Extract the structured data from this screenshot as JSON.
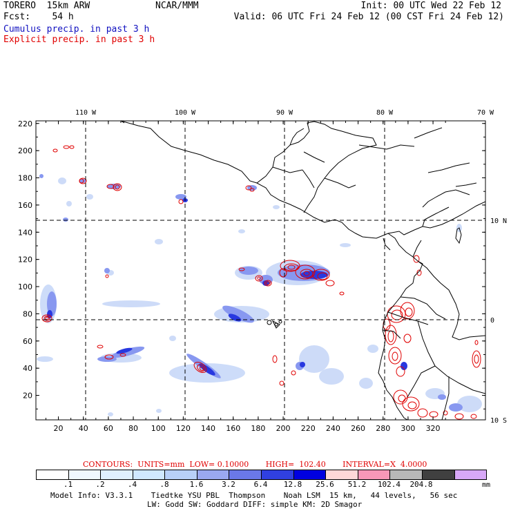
{
  "header": {
    "model": "TORERO  15km ARW",
    "org": "NCAR/MMM",
    "init": "Init: 00 UTC Wed 22 Feb 12",
    "fcst": "Fcst:    54 h",
    "valid": "Valid: 06 UTC Fri 24 Feb 12 (00 CST Fri 24 Feb 12)"
  },
  "legend": {
    "cumulus": "Cumulus precip. in past 3 h",
    "explicit": "Explicit precip. in past 3 h",
    "cumulus_color": "#1010c0",
    "explicit_color": "#e00000"
  },
  "map": {
    "top_lon_labels": [
      "110 W",
      "100 W",
      "90 W",
      "80 W",
      "70 W"
    ],
    "right_lat_labels": [
      "10 N",
      "0",
      "10 S"
    ],
    "y_ticks": [
      "220",
      "200",
      "180",
      "160",
      "140",
      "120",
      "100",
      "80",
      "60",
      "40",
      "20"
    ],
    "x_ticks": [
      "20",
      "40",
      "60",
      "80",
      "100",
      "120",
      "140",
      "160",
      "180",
      "200",
      "220",
      "240",
      "260",
      "280",
      "300",
      "320"
    ],
    "gridline_style": "dashed"
  },
  "contours_info": "CONTOURS:  UNITS=mm  LOW= 0.10000       HIGH=  102.40       INTERVAL=X  4.0000",
  "color_scale": {
    "colors": [
      "#ffffff",
      "#f0f8ff",
      "#e0f0ff",
      "#d0e8ff",
      "#b8d0f8",
      "#9aa8f0",
      "#6a78e8",
      "#3040e0",
      "#0000e0",
      "#ffd8d8",
      "#f898b8",
      "#b8b8b8",
      "#404040",
      "#d8a8f8"
    ],
    "labels": [
      ".1",
      ".2",
      ".4",
      ".8",
      "1.6",
      "3.2",
      "6.4",
      "12.8",
      "25.6",
      "51.2",
      "102.4",
      "204.8"
    ],
    "unit": "mm"
  },
  "model_info_1": "Model Info: V3.3.1    Tiedtke YSU PBL  Thompson    Noah LSM  15 km,   44 levels,   56 sec",
  "model_info_2": "LW: Godd SW: Goddard DIFF: simple KM: 2D Smagor"
}
